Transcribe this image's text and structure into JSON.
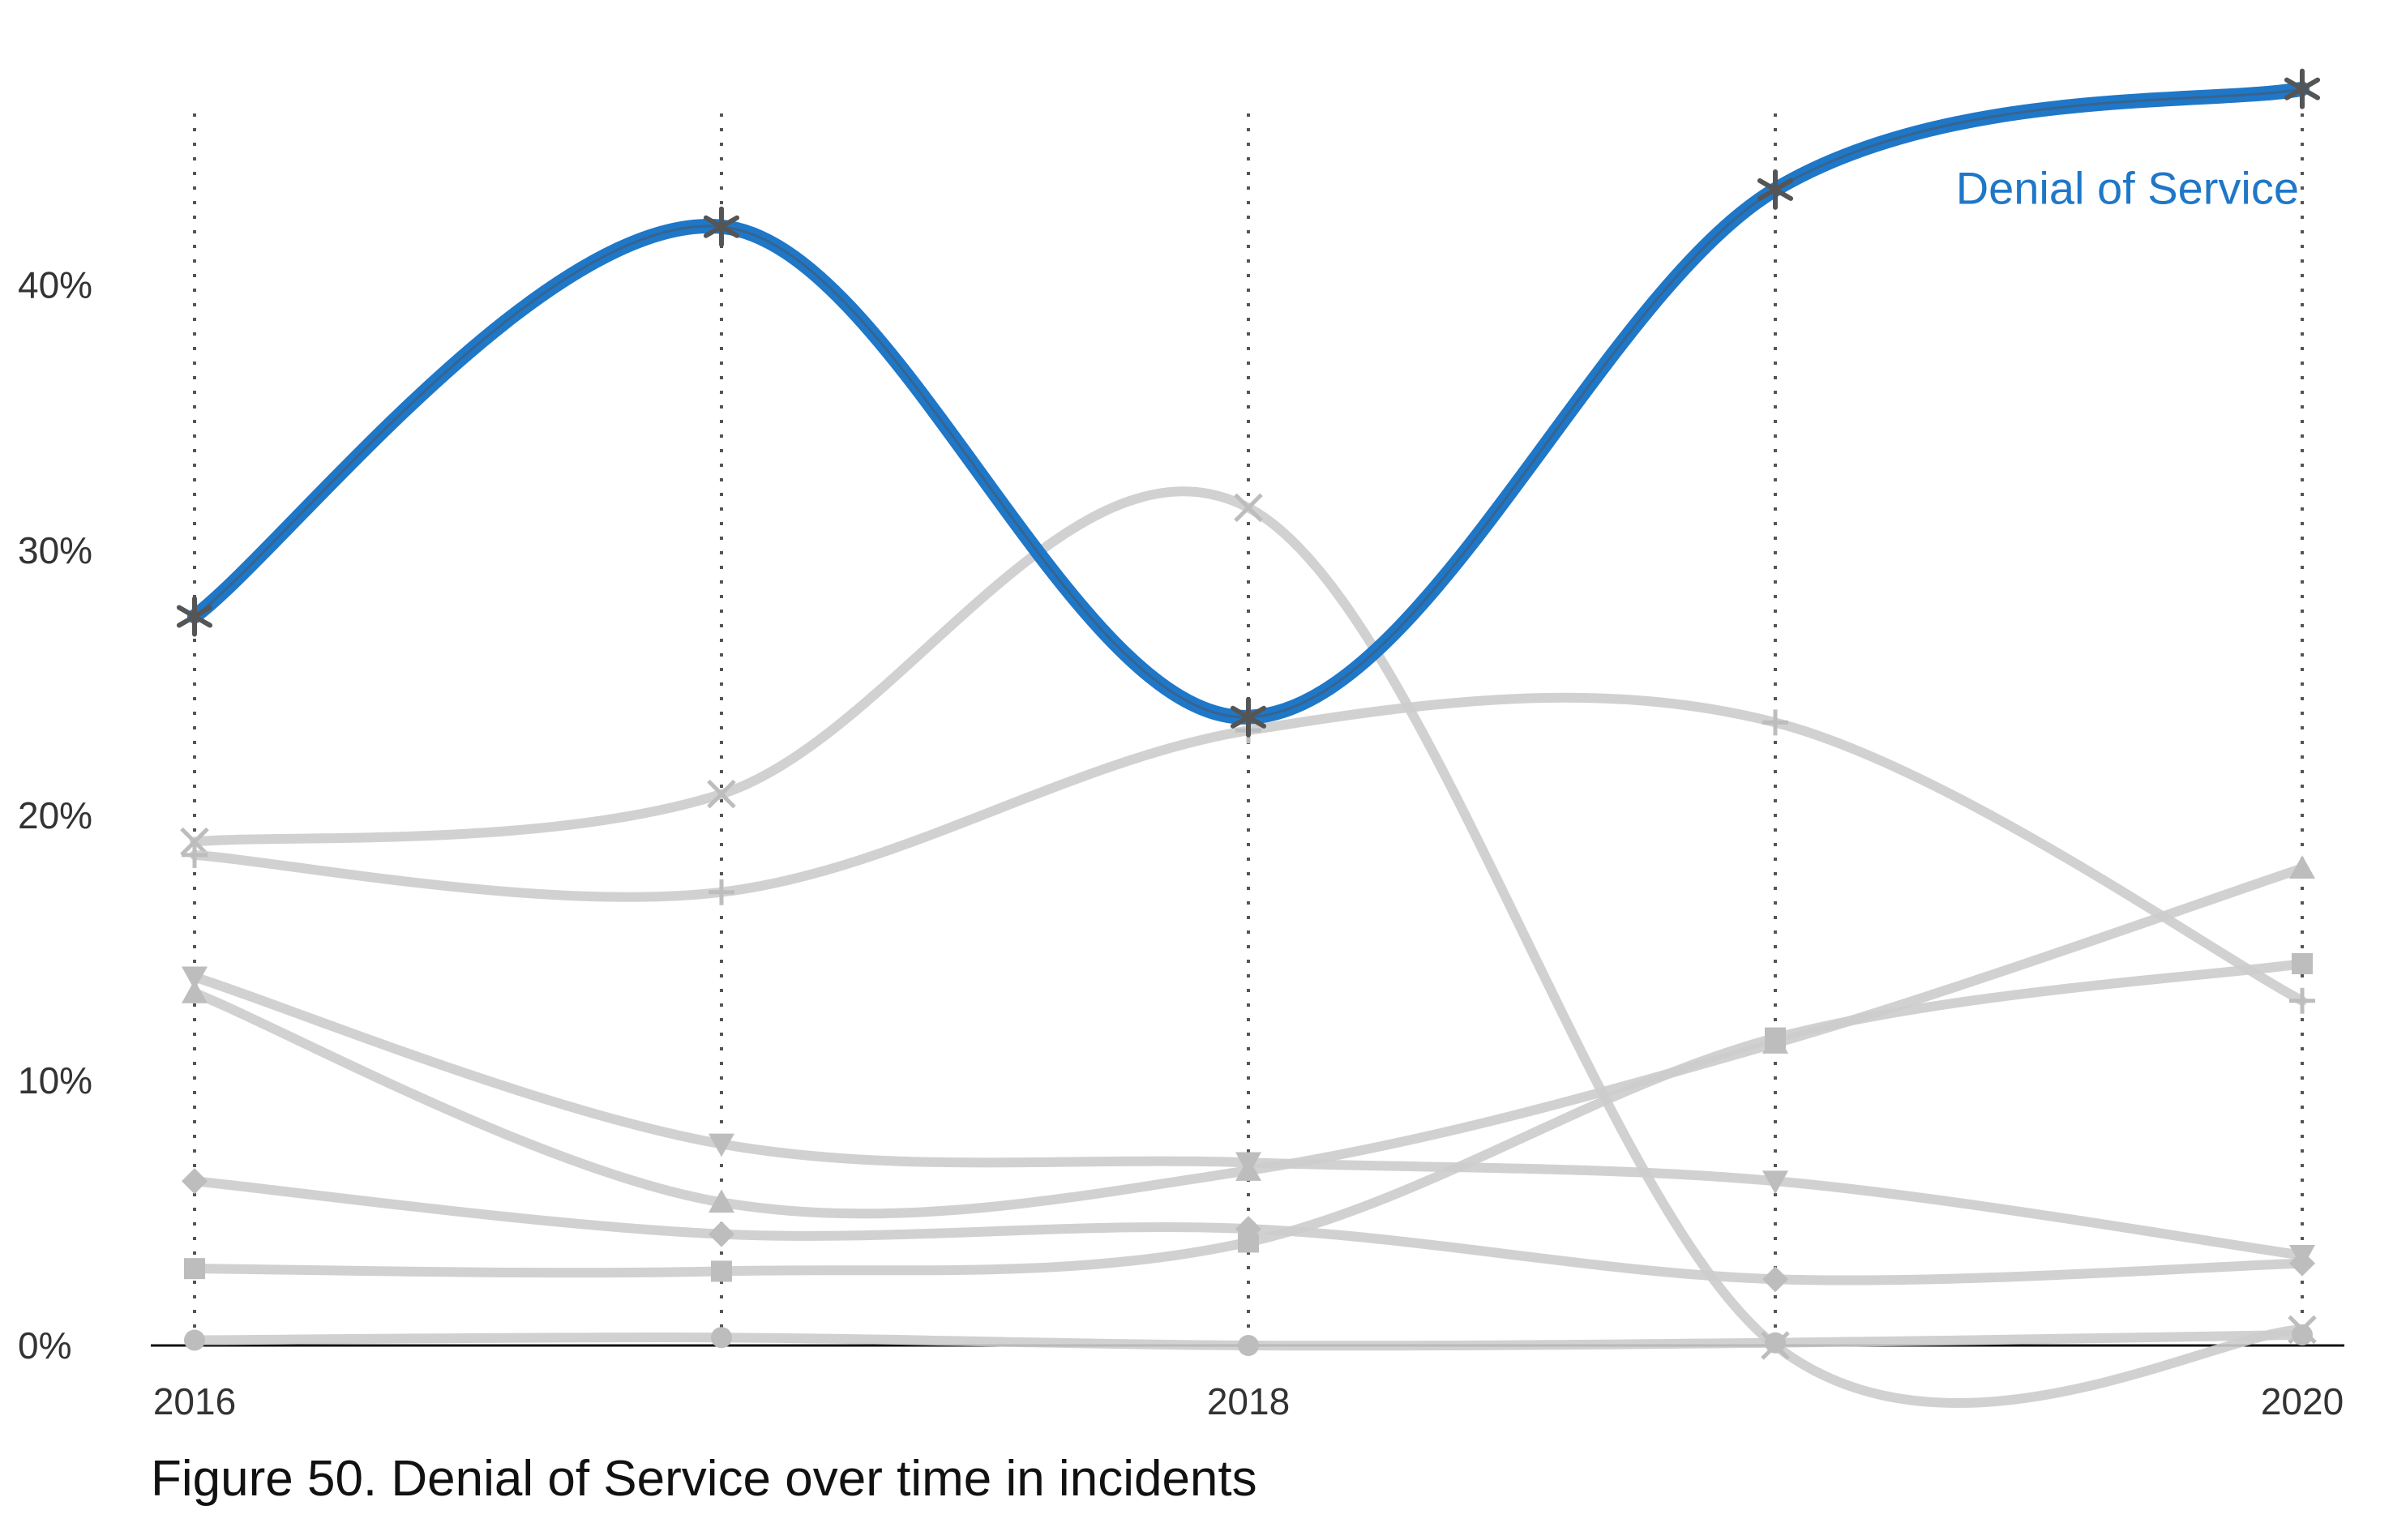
{
  "chart_data": {
    "type": "line",
    "title": "Figure 50. Denial of Service over time in incidents",
    "x": [
      2016,
      2016.5,
      2017,
      2017.5,
      2018,
      2018.5,
      2019,
      2019.5,
      2020
    ],
    "x_ticks": [
      2016,
      2018,
      2020
    ],
    "x_tick_labels": [
      "2016",
      "2018",
      "2020"
    ],
    "x_gridlines": [
      2016,
      2017,
      2018,
      2019,
      2020
    ],
    "xlim": [
      2016,
      2020
    ],
    "ylim": [
      0,
      48
    ],
    "y_ticks": [
      0,
      10,
      20,
      30,
      40
    ],
    "y_tick_labels": [
      "0%",
      "10%",
      "20%",
      "30%",
      "40%"
    ],
    "xlabel": "",
    "ylabel": "",
    "grid": "vertical dotted",
    "highlight_color": "#1f77c8",
    "background_color": "#cccccc",
    "highlight_series": {
      "name": "Denial of Service",
      "marker": "asterisk",
      "x": [
        2016,
        2017,
        2018,
        2019,
        2020
      ],
      "values": [
        27.5,
        42.2,
        23.7,
        43.6,
        47.4
      ]
    },
    "series": [
      {
        "marker": "x",
        "x": [
          2016,
          2017,
          2018,
          2019,
          2020
        ],
        "values": [
          19.0,
          20.8,
          31.6,
          0.0,
          0.6
        ]
      },
      {
        "marker": "plus",
        "x": [
          2016,
          2017,
          2018,
          2019,
          2020
        ],
        "values": [
          18.5,
          17.1,
          23.2,
          23.5,
          13.0
        ]
      },
      {
        "marker": "triangle-up",
        "x": [
          2016,
          2017,
          2018,
          2019,
          2020
        ],
        "values": [
          13.3,
          5.4,
          6.6,
          11.4,
          18.0
        ]
      },
      {
        "marker": "triangle-down",
        "x": [
          2016,
          2017,
          2018,
          2019,
          2020
        ],
        "values": [
          13.9,
          7.6,
          6.9,
          6.2,
          3.4
        ]
      },
      {
        "marker": "square",
        "x": [
          2016,
          2017,
          2018,
          2019,
          2020
        ],
        "values": [
          2.9,
          2.8,
          3.9,
          11.6,
          14.4
        ]
      },
      {
        "marker": "diamond",
        "x": [
          2016,
          2017,
          2018,
          2019,
          2020
        ],
        "values": [
          6.2,
          4.2,
          4.4,
          2.5,
          3.1
        ]
      },
      {
        "marker": "circle",
        "x": [
          2016,
          2017,
          2018,
          2019,
          2020
        ],
        "values": [
          0.2,
          0.3,
          0.0,
          0.1,
          0.4
        ]
      }
    ]
  }
}
